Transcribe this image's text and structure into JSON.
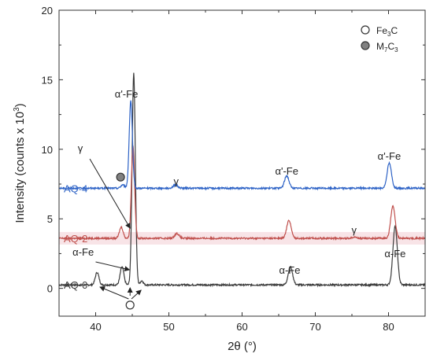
{
  "chart_data": {
    "type": "line",
    "xlabel": "2θ (°)",
    "ylabel": "Intensity (counts x 10",
    "ylabel_sup": "3",
    "ylabel_close": ")",
    "xlim": [
      35,
      85
    ],
    "ylim": [
      -2,
      20
    ],
    "xticks": [
      40,
      50,
      60,
      70,
      80
    ],
    "yticks": [
      0,
      5,
      10,
      15,
      20
    ],
    "grid": false,
    "series": [
      {
        "name": "AQ-0",
        "color": "#3a3a3a",
        "baseline": 0.25,
        "peaks": [
          [
            40.2,
            0.9,
            0.25
          ],
          [
            43.6,
            1.3,
            0.25
          ],
          [
            45.2,
            15.2,
            0.22
          ],
          [
            46.3,
            0.3,
            0.2
          ],
          [
            66.6,
            1.3,
            0.3
          ],
          [
            80.9,
            4.2,
            0.3
          ]
        ]
      },
      {
        "name": "AQ-2",
        "color": "#c0504d",
        "baseline": 3.6,
        "peaks": [
          [
            43.5,
            0.8,
            0.25
          ],
          [
            45.1,
            6.6,
            0.22
          ],
          [
            51.1,
            0.35,
            0.3
          ],
          [
            66.4,
            1.3,
            0.3
          ],
          [
            75.3,
            0.1,
            0.3
          ],
          [
            80.6,
            2.3,
            0.3
          ]
        ]
      },
      {
        "name": "AQ-4",
        "color": "#2e63c6",
        "baseline": 7.2,
        "peaks": [
          [
            43.7,
            0.25,
            0.25
          ],
          [
            44.8,
            6.3,
            0.22
          ],
          [
            50.9,
            0.25,
            0.3
          ],
          [
            66.1,
            0.9,
            0.3
          ],
          [
            80.1,
            1.8,
            0.3
          ]
        ]
      }
    ],
    "annotations": {
      "a_fe_prime_top": "α'-Fe",
      "gamma_top": "γ",
      "gamma_aq4": "γ",
      "a_fe_prime_mid": "α'-Fe",
      "a_fe_prime_right": "α'-Fe",
      "gamma_aq2": "γ",
      "a_fe_left": "α-Fe",
      "a_fe_mid": "α-Fe",
      "a_fe_right": "α-Fe"
    },
    "legend": {
      "placement": "top-right",
      "items": [
        {
          "label": "Fe",
          "sub": "3",
          "suffix": "C",
          "marker": "open-circle",
          "color": "#ffffff"
        },
        {
          "label": "M",
          "sub": "7",
          "suffix": "C",
          "sub2": "3",
          "marker": "filled-circle",
          "color": "#808080"
        }
      ]
    },
    "markers": [
      {
        "type": "filled-circle",
        "x": 43.4,
        "y": 8.0,
        "color": "#808080"
      },
      {
        "type": "open-circle",
        "x": 44.7,
        "y": -1.2,
        "color": "#ffffff"
      }
    ]
  }
}
